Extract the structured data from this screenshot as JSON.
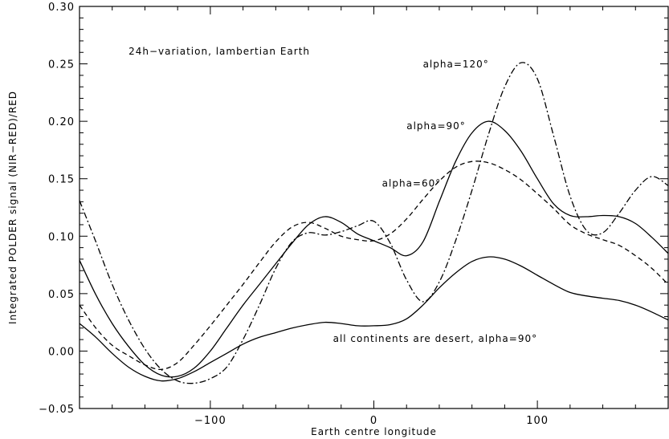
{
  "chart_data": {
    "type": "line",
    "title": "",
    "xlabel": "Earth centre longitude",
    "ylabel": "Integrated POLDER signal (NIR−RED)/RED",
    "xlim": [
      -180,
      180
    ],
    "ylim": [
      -0.05,
      0.3
    ],
    "x_ticks": [
      -100,
      0,
      100
    ],
    "x_tick_labels": [
      "−100",
      "0",
      "100"
    ],
    "y_ticks": [
      -0.05,
      0.0,
      0.05,
      0.1,
      0.15,
      0.2,
      0.25,
      0.3
    ],
    "y_tick_labels": [
      "−0.05",
      "0.00",
      "0.05",
      "0.10",
      "0.15",
      "0.20",
      "0.25",
      "0.30"
    ],
    "grid": false,
    "annotations": [
      {
        "text": "24h−variation, lambertian Earth",
        "x": -150,
        "y": 0.258
      },
      {
        "text": "alpha=120°",
        "x": 30,
        "y": 0.247,
        "series": 3
      },
      {
        "text": "alpha=90°",
        "x": 20,
        "y": 0.193,
        "series": 1
      },
      {
        "text": "alpha=60°",
        "x": 5,
        "y": 0.143,
        "series": 0
      },
      {
        "text": "all continents are desert, alpha=90°",
        "x": -25,
        "y": 0.008,
        "series": 2
      }
    ],
    "series": [
      {
        "style": "dashed",
        "x": [
          -180,
          -170,
          -160,
          -150,
          -140,
          -130,
          -120,
          -110,
          -100,
          -90,
          -80,
          -70,
          -60,
          -50,
          -40,
          -30,
          -20,
          -10,
          0,
          10,
          20,
          30,
          40,
          50,
          60,
          70,
          80,
          90,
          100,
          110,
          120,
          130,
          140,
          150,
          160,
          170,
          180
        ],
        "y": [
          0.04,
          0.02,
          0.005,
          -0.004,
          -0.012,
          -0.016,
          -0.01,
          0.005,
          0.022,
          0.04,
          0.058,
          0.077,
          0.095,
          0.108,
          0.112,
          0.107,
          0.1,
          0.097,
          0.096,
          0.102,
          0.115,
          0.132,
          0.148,
          0.16,
          0.165,
          0.164,
          0.158,
          0.149,
          0.137,
          0.124,
          0.11,
          0.102,
          0.097,
          0.092,
          0.083,
          0.072,
          0.058
        ]
      },
      {
        "style": "solid",
        "x": [
          -180,
          -170,
          -160,
          -150,
          -140,
          -130,
          -120,
          -110,
          -100,
          -90,
          -80,
          -70,
          -60,
          -50,
          -40,
          -30,
          -20,
          -10,
          0,
          10,
          20,
          30,
          40,
          50,
          60,
          70,
          80,
          90,
          100,
          110,
          120,
          130,
          140,
          150,
          160,
          170,
          180
        ],
        "y": [
          0.079,
          0.049,
          0.024,
          0.004,
          -0.012,
          -0.021,
          -0.022,
          -0.015,
          0.0,
          0.02,
          0.04,
          0.058,
          0.076,
          0.094,
          0.11,
          0.117,
          0.112,
          0.102,
          0.096,
          0.09,
          0.083,
          0.095,
          0.13,
          0.165,
          0.19,
          0.2,
          0.192,
          0.174,
          0.15,
          0.128,
          0.118,
          0.117,
          0.118,
          0.117,
          0.111,
          0.099,
          0.085
        ]
      },
      {
        "style": "solid",
        "x": [
          -180,
          -170,
          -160,
          -150,
          -140,
          -130,
          -120,
          -110,
          -100,
          -90,
          -80,
          -70,
          -60,
          -50,
          -40,
          -30,
          -20,
          -10,
          0,
          10,
          20,
          30,
          40,
          50,
          60,
          70,
          80,
          90,
          100,
          110,
          120,
          130,
          140,
          150,
          160,
          170,
          180
        ],
        "y": [
          0.024,
          0.012,
          -0.002,
          -0.014,
          -0.022,
          -0.026,
          -0.024,
          -0.018,
          -0.01,
          -0.002,
          0.006,
          0.012,
          0.016,
          0.02,
          0.023,
          0.025,
          0.024,
          0.022,
          0.022,
          0.023,
          0.028,
          0.04,
          0.055,
          0.068,
          0.078,
          0.082,
          0.08,
          0.074,
          0.066,
          0.058,
          0.051,
          0.048,
          0.046,
          0.044,
          0.04,
          0.034,
          0.027
        ]
      },
      {
        "style": "dashdot",
        "x": [
          -180,
          -170,
          -160,
          -150,
          -140,
          -130,
          -120,
          -110,
          -100,
          -90,
          -80,
          -70,
          -60,
          -50,
          -40,
          -30,
          -20,
          -10,
          0,
          10,
          20,
          30,
          40,
          50,
          60,
          70,
          80,
          90,
          100,
          110,
          120,
          130,
          140,
          150,
          160,
          170,
          180
        ],
        "y": [
          0.131,
          0.095,
          0.058,
          0.027,
          0.002,
          -0.016,
          -0.026,
          -0.028,
          -0.024,
          -0.014,
          0.01,
          0.04,
          0.072,
          0.095,
          0.103,
          0.101,
          0.104,
          0.109,
          0.113,
          0.094,
          0.062,
          0.043,
          0.06,
          0.096,
          0.14,
          0.188,
          0.23,
          0.251,
          0.237,
          0.187,
          0.135,
          0.105,
          0.103,
          0.12,
          0.14,
          0.152,
          0.144
        ]
      }
    ]
  }
}
